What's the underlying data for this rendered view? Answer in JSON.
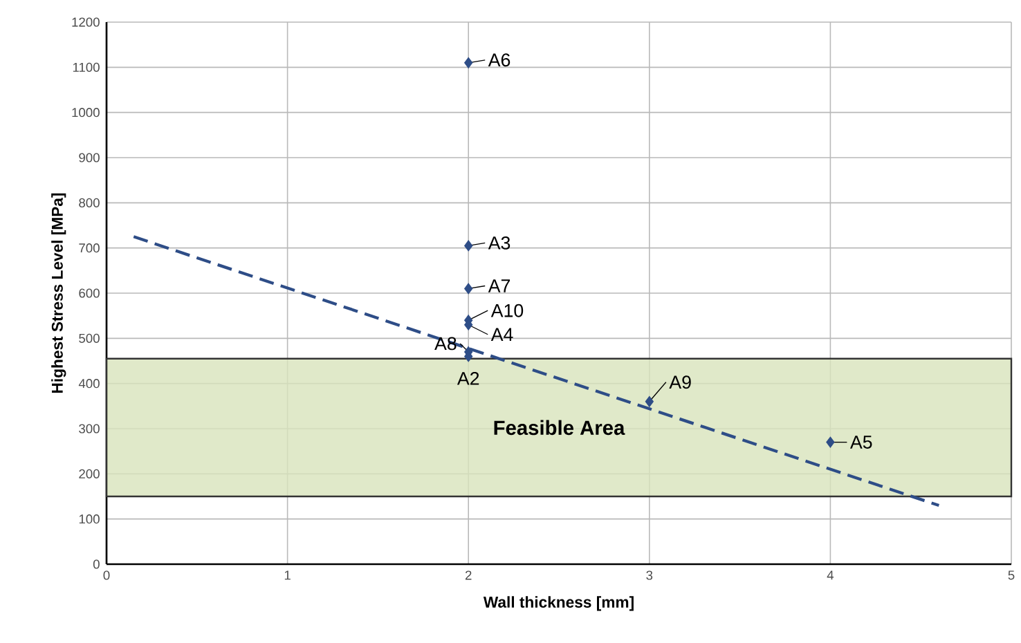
{
  "chart_data": {
    "type": "scatter",
    "xlabel": "Wall thickness [mm]",
    "ylabel": "Highest Stress Level [MPa]",
    "xlim": [
      0,
      5
    ],
    "xticks": [
      0,
      1,
      2,
      3,
      4,
      5
    ],
    "ylim": [
      0,
      1200
    ],
    "yticks": [
      0,
      100,
      200,
      300,
      400,
      500,
      600,
      700,
      800,
      900,
      1000,
      1100,
      1200
    ],
    "grid": true,
    "marker": "diamond",
    "series": [
      {
        "color": "#2e4d87",
        "x": [
          2,
          2,
          2,
          2,
          2,
          2,
          2,
          3,
          4
        ],
        "values": [
          1110,
          705,
          610,
          540,
          530,
          470,
          460,
          360,
          270
        ]
      },
      {
        "type": "line",
        "color": "#2e4d87",
        "line_style": "dashed",
        "marker": "none",
        "x": [
          0.15,
          4.6
        ],
        "values": [
          725,
          130
        ]
      }
    ],
    "bands": [
      {
        "axis": "y",
        "from": 150,
        "to": 455,
        "label": "Feasible Area",
        "color": "#d8e4bc"
      }
    ],
    "annotations": [
      {
        "text": "A6",
        "x": 2,
        "y": 1110
      },
      {
        "text": "A3",
        "x": 2,
        "y": 705
      },
      {
        "text": "A7",
        "x": 2,
        "y": 610
      },
      {
        "text": "A10",
        "x": 2,
        "y": 540
      },
      {
        "text": "A4",
        "x": 2,
        "y": 530
      },
      {
        "text": "A8",
        "x": 2,
        "y": 470
      },
      {
        "text": "A2",
        "x": 2,
        "y": 460
      },
      {
        "text": "A9",
        "x": 3,
        "y": 360
      },
      {
        "text": "A5",
        "x": 4,
        "y": 270
      }
    ]
  }
}
